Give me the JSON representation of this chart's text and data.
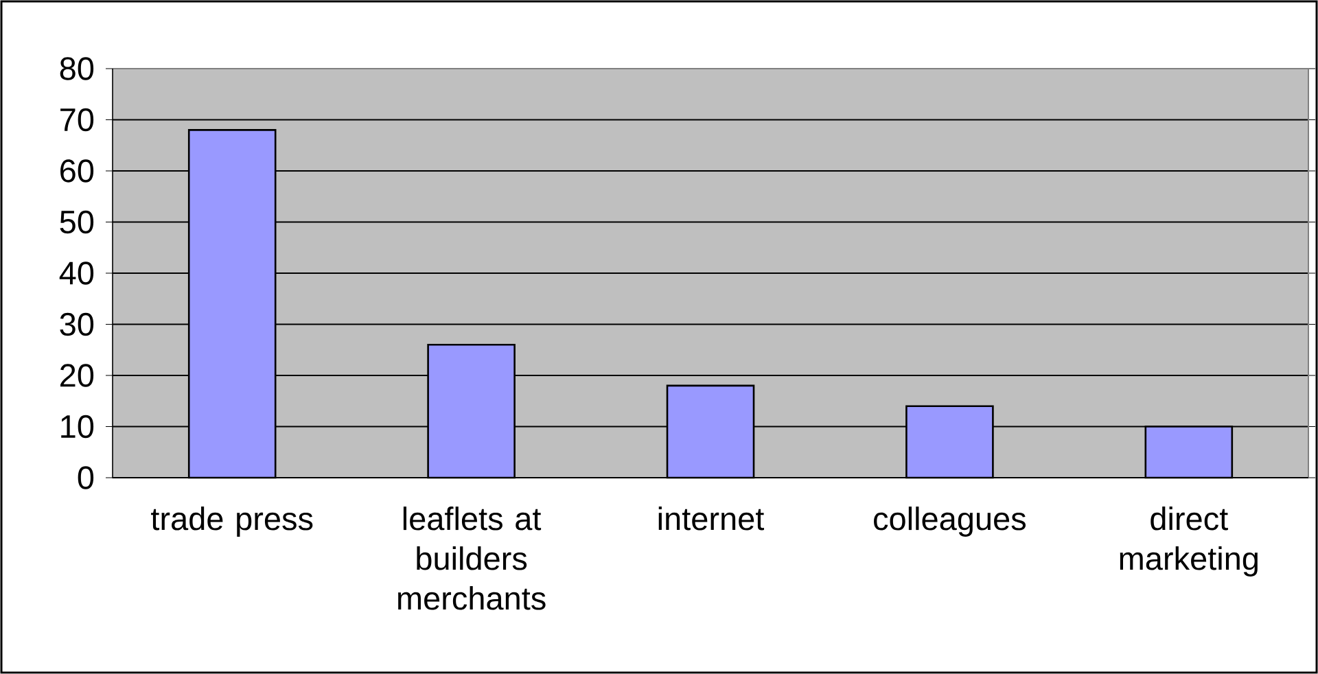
{
  "chart_data": {
    "type": "bar",
    "categories": [
      "trade press",
      "leaflets at builders merchants",
      "internet",
      "colleagues",
      "direct marketing"
    ],
    "values": [
      68,
      26,
      18,
      14,
      10
    ],
    "color": "#9999ff",
    "ylim": [
      0,
      80
    ],
    "yticks": [
      0,
      10,
      20,
      30,
      40,
      50,
      60,
      70,
      80
    ],
    "grid": "y"
  }
}
